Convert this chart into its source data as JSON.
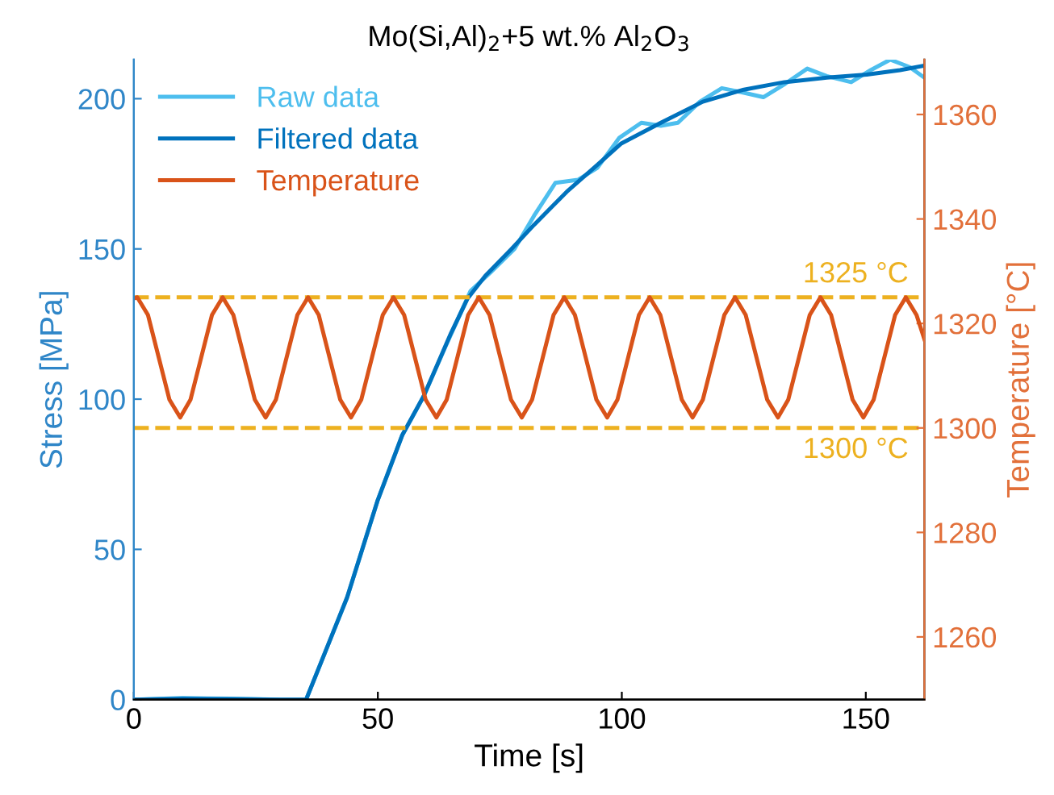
{
  "chart_data": {
    "type": "line",
    "title": "Mo(Si,Al)$_{2}$+5 wt.% Al$_{2}$O$_{3}$",
    "xlabel": "Time [s]",
    "ylabel": "Stress [MPa]",
    "y2label": "Temperature [°C]",
    "xlim": [
      0,
      162
    ],
    "xticks": [
      0,
      50,
      100,
      150
    ],
    "ylim": [
      0,
      213
    ],
    "yticks": [
      0,
      50,
      100,
      150,
      200
    ],
    "y2lim": [
      1248,
      1370.5
    ],
    "y2ticks": [
      1260,
      1280,
      1300,
      1320,
      1340,
      1360
    ],
    "legend": "top left",
    "grid": false,
    "marker": "none",
    "line_style": "solid",
    "ref_lines": [
      {
        "axis": "y2",
        "value": 1325,
        "label": "1325 °C",
        "color": "#edb120",
        "line_style": "dashed"
      },
      {
        "axis": "y2",
        "value": 1300,
        "label": "1300 °C",
        "color": "#edb120",
        "line_style": "dashed"
      }
    ],
    "series": [
      {
        "name": "Raw data",
        "color": "#4dbeee",
        "x": [
          0,
          10,
          20,
          30,
          35.3,
          43.7,
          49.9,
          55,
          59.4,
          64,
          69,
          73,
          78,
          82,
          86.4,
          91,
          95,
          99.5,
          104,
          108,
          111.5,
          116,
          120.5,
          125,
          129,
          133.5,
          138,
          142,
          147,
          151,
          155,
          159,
          162
        ],
        "values": [
          0,
          0.5,
          0.3,
          0,
          0,
          34,
          66,
          88,
          101,
          118,
          136,
          142,
          150,
          161,
          172,
          173,
          177,
          187,
          192,
          191,
          192,
          199,
          203.5,
          202,
          200.5,
          205,
          210,
          207.5,
          205.5,
          209.5,
          213,
          210.5,
          207
        ]
      },
      {
        "name": "Filtered data",
        "color": "#0072bd",
        "x": [
          0,
          10,
          20,
          30,
          35.3,
          40,
          43.7,
          49.9,
          55,
          59.4,
          65,
          68.4,
          72,
          77.4,
          82,
          88.7,
          95,
          99.8,
          108,
          116.6,
          125,
          133.3,
          142,
          150.2,
          157,
          162
        ],
        "values": [
          0,
          0.3,
          0.2,
          0,
          0,
          19,
          34,
          66,
          88,
          101,
          122,
          133.5,
          141,
          150,
          158,
          169,
          178,
          185,
          192,
          199,
          203,
          205.5,
          207,
          208,
          209.5,
          211
        ]
      },
      {
        "name": "Temperature",
        "color": "#d95319",
        "axis": "y2",
        "x": [
          0,
          0.7,
          2.9,
          5.1,
          7.3,
          9.5,
          11.6,
          13.8,
          16.0,
          18.2,
          20.4,
          22.6,
          24.8,
          27.0,
          29.1,
          31.3,
          33.5,
          35.7,
          37.9,
          40.1,
          42.3,
          44.5,
          46.6,
          48.8,
          51.0,
          53.2,
          55.4,
          57.6,
          59.8,
          62.0,
          64.1,
          66.3,
          68.5,
          70.7,
          72.9,
          75.1,
          77.3,
          79.5,
          81.6,
          83.8,
          86.0,
          88.2,
          90.4,
          92.6,
          94.8,
          97.0,
          99.1,
          101.3,
          103.5,
          105.7,
          107.9,
          110.1,
          112.3,
          114.5,
          116.6,
          118.8,
          121.0,
          123.2,
          125.4,
          127.6,
          129.8,
          132.0,
          134.1,
          136.3,
          138.5,
          140.7,
          142.9,
          145.1,
          147.3,
          149.5,
          151.6,
          153.8,
          156.0,
          158.2,
          160.4,
          162.0
        ],
        "values": [
          1324.8,
          1325,
          1321.6,
          1313.5,
          1305.4,
          1302,
          1305.4,
          1313.5,
          1321.6,
          1325,
          1321.6,
          1313.5,
          1305.4,
          1302,
          1305.4,
          1313.5,
          1321.6,
          1325,
          1321.6,
          1313.5,
          1305.4,
          1302,
          1305.4,
          1313.5,
          1321.6,
          1325,
          1321.6,
          1313.5,
          1305.4,
          1302,
          1305.4,
          1313.5,
          1321.6,
          1325,
          1321.6,
          1313.5,
          1305.4,
          1302,
          1305.4,
          1313.5,
          1321.6,
          1325,
          1321.6,
          1313.5,
          1305.4,
          1302,
          1305.4,
          1313.5,
          1321.6,
          1325,
          1321.6,
          1313.5,
          1305.4,
          1302,
          1305.4,
          1313.5,
          1321.6,
          1325,
          1321.6,
          1313.5,
          1305.4,
          1302,
          1305.4,
          1313.5,
          1321.6,
          1325,
          1321.6,
          1313.5,
          1305.4,
          1302,
          1305.4,
          1313.5,
          1321.6,
          1325,
          1321.6,
          1317
        ]
      }
    ]
  }
}
